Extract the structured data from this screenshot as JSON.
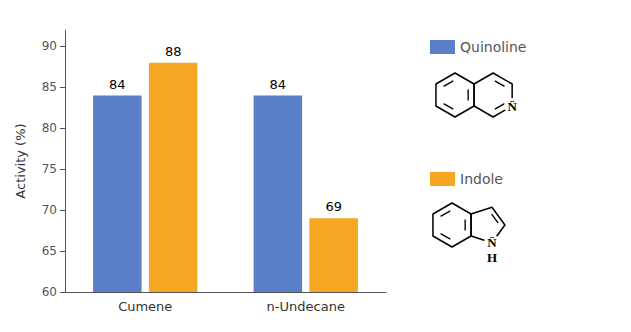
{
  "chart_data": {
    "type": "bar",
    "categories": [
      "Cumene",
      "n-Undecane"
    ],
    "series": [
      {
        "name": "Quinoline",
        "color": "#5B7EC9",
        "values": [
          84,
          84
        ]
      },
      {
        "name": "Indole",
        "color": "#F5A623",
        "values": [
          88,
          69
        ]
      }
    ],
    "ylabel": "Activity (%)",
    "ylim": [
      60,
      92
    ],
    "yticks": [
      60,
      65,
      70,
      75,
      80,
      85,
      90
    ],
    "data_labels": true,
    "grid": false,
    "legend": "right",
    "annotations": [
      "N̈",
      "N̈",
      "H"
    ]
  }
}
